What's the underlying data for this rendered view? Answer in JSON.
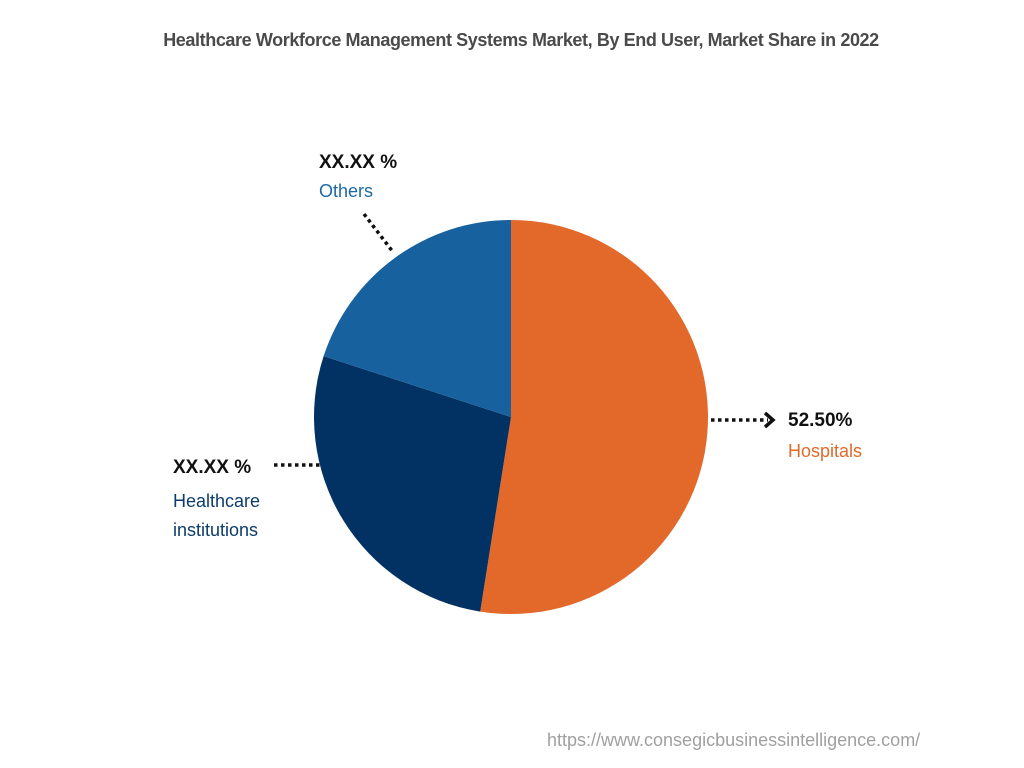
{
  "chart_data": {
    "type": "pie",
    "title": "Healthcare Workforce Management Systems Market, By End User, Market Share in 2022",
    "categories": [
      "Hospitals",
      "Healthcare institutions",
      "Others"
    ],
    "values": [
      52.5,
      27.5,
      20.0
    ],
    "value_labels": [
      "52.50%",
      "XX.XX %",
      "XX.XX %"
    ],
    "colors": [
      "#e3692a",
      "#023163",
      "#17629e"
    ],
    "start_angle_deg": 0,
    "direction": "clockwise",
    "legend": "callout labels with dotted leader lines",
    "note": "Only Hospitals value is shown; other two slices are masked as XX.XX %; their values are estimated from slice geometry"
  },
  "title": "Healthcare Workforce Management Systems Market, By End User, Market Share in 2022",
  "labels": {
    "others": {
      "pct": "XX.XX %",
      "name": "Others"
    },
    "hospitals": {
      "pct": "52.50%",
      "name": "Hospitals"
    },
    "healthcare_institutions": {
      "pct": "XX.XX %",
      "name_line1": "Healthcare",
      "name_line2": "institutions"
    }
  },
  "source_url": "https://www.consegicbusinessintelligence.com/"
}
